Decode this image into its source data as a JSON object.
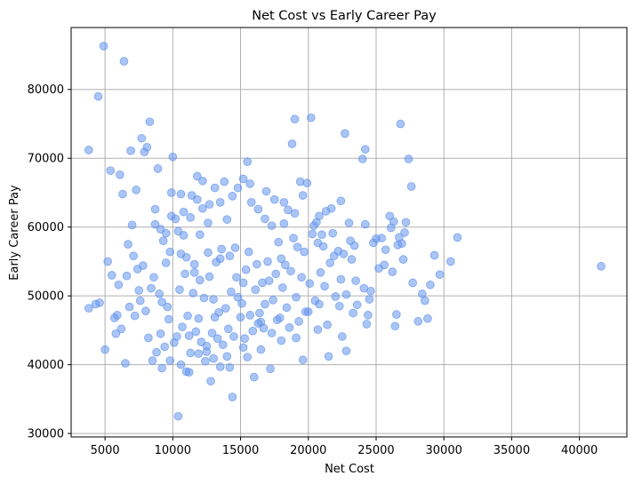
{
  "chart_data": {
    "type": "scatter",
    "title": "Net Cost vs Early Career Pay",
    "xlabel": "Net Cost",
    "ylabel": "Early Career Pay",
    "xlim": [
      2500,
      43500
    ],
    "ylim": [
      29500,
      89000
    ],
    "xticks": [
      5000,
      10000,
      15000,
      20000,
      25000,
      30000,
      35000,
      40000
    ],
    "yticks": [
      30000,
      40000,
      50000,
      60000,
      70000,
      80000
    ],
    "grid": true,
    "marker_color": "#6495ED",
    "marker_alpha": 0.55,
    "points": [
      [
        3800,
        71200
      ],
      [
        4500,
        79000
      ],
      [
        4900,
        86300
      ],
      [
        6400,
        84100
      ],
      [
        3800,
        48200
      ],
      [
        4300,
        48800
      ],
      [
        4600,
        49000
      ],
      [
        5000,
        42200
      ],
      [
        5200,
        55000
      ],
      [
        5400,
        68200
      ],
      [
        5700,
        46800
      ],
      [
        5900,
        47200
      ],
      [
        6100,
        67600
      ],
      [
        6300,
        64800
      ],
      [
        6500,
        40200
      ],
      [
        6700,
        57500
      ],
      [
        6900,
        71100
      ],
      [
        7100,
        55800
      ],
      [
        7300,
        65400
      ],
      [
        7500,
        50800
      ],
      [
        7700,
        72900
      ],
      [
        7900,
        70900
      ],
      [
        8100,
        71600
      ],
      [
        8300,
        75300
      ],
      [
        8500,
        40600
      ],
      [
        8700,
        62600
      ],
      [
        8900,
        68500
      ],
      [
        9100,
        44500
      ],
      [
        9300,
        58000
      ],
      [
        9500,
        54800
      ],
      [
        9700,
        46600
      ],
      [
        9900,
        65000
      ],
      [
        10000,
        70200
      ],
      [
        10200,
        61200
      ],
      [
        10400,
        32500
      ],
      [
        10600,
        64800
      ],
      [
        10800,
        58800
      ],
      [
        11000,
        39000
      ],
      [
        11200,
        44200
      ],
      [
        11400,
        64600
      ],
      [
        11600,
        54600
      ],
      [
        11800,
        67400
      ],
      [
        12000,
        58900
      ],
      [
        12200,
        66700
      ],
      [
        12400,
        40500
      ],
      [
        12600,
        60600
      ],
      [
        12800,
        37600
      ],
      [
        13000,
        49500
      ],
      [
        13400,
        47600
      ],
      [
        13800,
        66600
      ],
      [
        14000,
        61100
      ],
      [
        14200,
        39600
      ],
      [
        14400,
        35300
      ],
      [
        14800,
        49800
      ],
      [
        15200,
        42500
      ],
      [
        15500,
        69500
      ],
      [
        15800,
        63600
      ],
      [
        16000,
        38200
      ],
      [
        16400,
        47500
      ],
      [
        16900,
        65200
      ],
      [
        17200,
        39400
      ],
      [
        17500,
        64000
      ],
      [
        17800,
        57800
      ],
      [
        18200,
        63600
      ],
      [
        18500,
        62500
      ],
      [
        18800,
        72100
      ],
      [
        19000,
        75700
      ],
      [
        19400,
        66600
      ],
      [
        19600,
        40700
      ],
      [
        19900,
        66400
      ],
      [
        20200,
        75900
      ],
      [
        20600,
        60700
      ],
      [
        21000,
        58900
      ],
      [
        21300,
        62300
      ],
      [
        21500,
        41200
      ],
      [
        21900,
        55800
      ],
      [
        22300,
        48500
      ],
      [
        22700,
        73600
      ],
      [
        23100,
        58000
      ],
      [
        23500,
        52200
      ],
      [
        24000,
        69900
      ],
      [
        24200,
        71300
      ],
      [
        24500,
        49500
      ],
      [
        25000,
        58300
      ],
      [
        25600,
        54500
      ],
      [
        26000,
        61600
      ],
      [
        26500,
        47300
      ],
      [
        26800,
        75000
      ],
      [
        27100,
        59200
      ],
      [
        27400,
        69900
      ],
      [
        27600,
        65900
      ],
      [
        28100,
        46300
      ],
      [
        28600,
        49300
      ],
      [
        29000,
        51600
      ],
      [
        29300,
        55900
      ],
      [
        29700,
        53100
      ],
      [
        30500,
        55000
      ],
      [
        31000,
        58500
      ],
      [
        41600,
        54300
      ],
      [
        5800,
        44500
      ],
      [
        6200,
        45200
      ],
      [
        6800,
        48400
      ],
      [
        7200,
        47100
      ],
      [
        7600,
        49300
      ],
      [
        8000,
        47800
      ],
      [
        8200,
        43900
      ],
      [
        8600,
        52700
      ],
      [
        9000,
        50300
      ],
      [
        9200,
        49100
      ],
      [
        9600,
        48400
      ],
      [
        10100,
        43200
      ],
      [
        10500,
        50900
      ],
      [
        10900,
        53200
      ],
      [
        11100,
        47100
      ],
      [
        11500,
        50400
      ],
      [
        11900,
        46700
      ],
      [
        12300,
        49700
      ],
      [
        12700,
        52800
      ],
      [
        13100,
        46900
      ],
      [
        13500,
        55400
      ],
      [
        13900,
        48200
      ],
      [
        14300,
        50600
      ],
      [
        14700,
        52700
      ],
      [
        15100,
        48900
      ],
      [
        15400,
        53800
      ],
      [
        15700,
        47200
      ],
      [
        16100,
        50900
      ],
      [
        16500,
        46200
      ],
      [
        16800,
        48800
      ],
      [
        17100,
        52200
      ],
      [
        17400,
        49400
      ],
      [
        17700,
        46500
      ],
      [
        18100,
        51200
      ],
      [
        18400,
        48300
      ],
      [
        18700,
        53600
      ],
      [
        19100,
        49800
      ],
      [
        19500,
        52700
      ],
      [
        19800,
        47700
      ],
      [
        20100,
        51800
      ],
      [
        20500,
        49300
      ],
      [
        20900,
        53400
      ],
      [
        21200,
        51400
      ],
      [
        21600,
        54800
      ],
      [
        22000,
        49900
      ],
      [
        22400,
        52400
      ],
      [
        22800,
        50200
      ],
      [
        23200,
        55300
      ],
      [
        23600,
        48700
      ],
      [
        24100,
        51100
      ],
      [
        24400,
        47200
      ],
      [
        24600,
        50700
      ],
      [
        25200,
        54000
      ],
      [
        25700,
        56700
      ],
      [
        26200,
        53500
      ],
      [
        26600,
        57400
      ],
      [
        27000,
        55300
      ],
      [
        27700,
        51900
      ],
      [
        28400,
        50300
      ],
      [
        8800,
        41800
      ],
      [
        9400,
        42600
      ],
      [
        10300,
        44100
      ],
      [
        10700,
        45500
      ],
      [
        11300,
        41700
      ],
      [
        11700,
        44800
      ],
      [
        12100,
        43300
      ],
      [
        12500,
        41900
      ],
      [
        12900,
        44600
      ],
      [
        13300,
        43800
      ],
      [
        13700,
        42900
      ],
      [
        14100,
        45200
      ],
      [
        14500,
        44100
      ],
      [
        15000,
        46900
      ],
      [
        15300,
        43800
      ],
      [
        15900,
        44900
      ],
      [
        16300,
        46000
      ],
      [
        16700,
        45300
      ],
      [
        17300,
        44600
      ],
      [
        17900,
        46800
      ],
      [
        18600,
        45400
      ],
      [
        19300,
        46300
      ],
      [
        20000,
        47700
      ],
      [
        20800,
        48800
      ],
      [
        21400,
        45800
      ],
      [
        22500,
        44100
      ],
      [
        23300,
        47500
      ],
      [
        24300,
        45900
      ],
      [
        26400,
        45600
      ],
      [
        28800,
        46700
      ],
      [
        5500,
        53000
      ],
      [
        6000,
        51600
      ],
      [
        6600,
        52900
      ],
      [
        7400,
        53900
      ],
      [
        7800,
        54400
      ],
      [
        8400,
        51100
      ],
      [
        9800,
        56400
      ],
      [
        10600,
        56100
      ],
      [
        11000,
        55600
      ],
      [
        11600,
        53400
      ],
      [
        12000,
        52300
      ],
      [
        12600,
        56300
      ],
      [
        13200,
        54900
      ],
      [
        13600,
        56800
      ],
      [
        14200,
        55800
      ],
      [
        14600,
        57000
      ],
      [
        15200,
        51900
      ],
      [
        15600,
        56400
      ],
      [
        16200,
        54600
      ],
      [
        16600,
        51900
      ],
      [
        17000,
        55000
      ],
      [
        17600,
        53200
      ],
      [
        18000,
        55400
      ],
      [
        18300,
        54500
      ],
      [
        18900,
        58400
      ],
      [
        19200,
        57100
      ],
      [
        19700,
        56400
      ],
      [
        20300,
        59000
      ],
      [
        20700,
        57700
      ],
      [
        21100,
        57200
      ],
      [
        21800,
        59100
      ],
      [
        22200,
        56500
      ],
      [
        22600,
        56100
      ],
      [
        23000,
        60600
      ],
      [
        23400,
        57300
      ],
      [
        24800,
        57700
      ],
      [
        25400,
        58400
      ],
      [
        26100,
        59900
      ],
      [
        26900,
        57600
      ],
      [
        27200,
        60700
      ],
      [
        7000,
        60300
      ],
      [
        8700,
        60400
      ],
      [
        9100,
        59700
      ],
      [
        9500,
        59100
      ],
      [
        9900,
        61600
      ],
      [
        10400,
        59400
      ],
      [
        10800,
        62200
      ],
      [
        11300,
        61400
      ],
      [
        11800,
        64000
      ],
      [
        12200,
        62700
      ],
      [
        12700,
        63300
      ],
      [
        13100,
        65700
      ],
      [
        13500,
        63600
      ],
      [
        14400,
        64500
      ],
      [
        14800,
        65700
      ],
      [
        15200,
        67000
      ],
      [
        15700,
        66300
      ],
      [
        16300,
        62600
      ],
      [
        16800,
        61200
      ],
      [
        17300,
        60200
      ],
      [
        18200,
        60500
      ],
      [
        19000,
        62000
      ],
      [
        19600,
        64600
      ],
      [
        20400,
        60200
      ],
      [
        20800,
        61600
      ],
      [
        21700,
        62700
      ],
      [
        22400,
        63800
      ],
      [
        24200,
        60400
      ],
      [
        26300,
        60800
      ],
      [
        26700,
        58500
      ],
      [
        9200,
        39500
      ],
      [
        9800,
        40600
      ],
      [
        10600,
        40000
      ],
      [
        11200,
        38900
      ],
      [
        11900,
        41600
      ],
      [
        12500,
        42700
      ],
      [
        13000,
        40900
      ],
      [
        13500,
        39700
      ],
      [
        14000,
        41200
      ],
      [
        15500,
        41100
      ],
      [
        16500,
        42200
      ],
      [
        18000,
        43500
      ],
      [
        19100,
        43900
      ],
      [
        20700,
        45100
      ],
      [
        22800,
        42000
      ]
    ]
  }
}
